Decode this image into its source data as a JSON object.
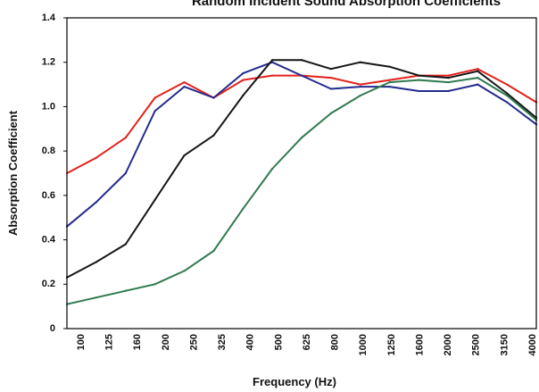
{
  "chart_data": {
    "type": "line",
    "title": "Random Incident Sound Absorption Coefficients",
    "xlabel": "Frequency (Hz)",
    "ylabel": "Absorption Coefficient",
    "categories": [
      "100",
      "125",
      "160",
      "200",
      "250",
      "325",
      "400",
      "500",
      "625",
      "800",
      "1000",
      "1250",
      "1600",
      "2000",
      "2500",
      "3150",
      "4000"
    ],
    "ylim": [
      0,
      1.4
    ],
    "yticks": [
      {
        "value": 0,
        "label": "0"
      },
      {
        "value": 0.2,
        "label": "0.2"
      },
      {
        "value": 0.4,
        "label": "0.4"
      },
      {
        "value": 0.6,
        "label": "0.6"
      },
      {
        "value": 0.8,
        "label": "0.8"
      },
      {
        "value": 1.0,
        "label": "1.0"
      },
      {
        "value": 1.2,
        "label": "1.2"
      },
      {
        "value": 1.4,
        "label": "1.4"
      }
    ],
    "grid": false,
    "legend": "none",
    "series": [
      {
        "color": "#e3211c",
        "values": [
          0.7,
          0.77,
          0.86,
          1.04,
          1.11,
          1.04,
          1.12,
          1.14,
          1.14,
          1.13,
          1.1,
          1.12,
          1.14,
          1.14,
          1.17,
          1.1,
          1.02
        ]
      },
      {
        "color": "#232b8c",
        "values": [
          0.46,
          0.57,
          0.7,
          0.98,
          1.09,
          1.04,
          1.15,
          1.2,
          1.14,
          1.08,
          1.09,
          1.09,
          1.07,
          1.07,
          1.1,
          1.02,
          0.92
        ]
      },
      {
        "color": "#151515",
        "values": [
          0.23,
          0.3,
          0.38,
          0.58,
          0.78,
          0.87,
          1.05,
          1.21,
          1.21,
          1.17,
          1.2,
          1.18,
          1.14,
          1.13,
          1.16,
          1.06,
          0.95
        ]
      },
      {
        "color": "#2f7a4f",
        "values": [
          0.11,
          0.14,
          0.17,
          0.2,
          0.26,
          0.35,
          0.54,
          0.72,
          0.86,
          0.97,
          1.05,
          1.11,
          1.12,
          1.11,
          1.13,
          1.05,
          0.94
        ]
      }
    ]
  }
}
